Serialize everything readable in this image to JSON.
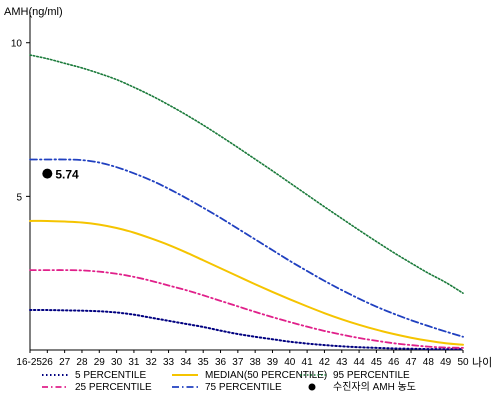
{
  "chart_data": {
    "type": "line",
    "ylabel": "AMH(ng/ml)",
    "xlabel": "나이",
    "ylim": [
      0,
      11
    ],
    "yticks": [
      5,
      10
    ],
    "categories": [
      "16-25",
      "26",
      "27",
      "28",
      "29",
      "30",
      "31",
      "32",
      "33",
      "34",
      "35",
      "36",
      "37",
      "38",
      "39",
      "40",
      "41",
      "42",
      "43",
      "44",
      "45",
      "46",
      "47",
      "48",
      "49",
      "50"
    ],
    "series": [
      {
        "name": "5 PERCENTILE",
        "color": "#000080",
        "dash": "1.5,2.5",
        "width": 2,
        "values": [
          1.3,
          1.3,
          1.29,
          1.28,
          1.26,
          1.22,
          1.15,
          1.05,
          0.95,
          0.85,
          0.75,
          0.63,
          0.52,
          0.43,
          0.35,
          0.27,
          0.21,
          0.16,
          0.12,
          0.09,
          0.07,
          0.05,
          0.04,
          0.03,
          0.03,
          0.03
        ]
      },
      {
        "name": "25 PERCENTILE",
        "color": "#e0208a",
        "dash": "6,3,1.5,3",
        "width": 1.8,
        "values": [
          2.6,
          2.6,
          2.6,
          2.59,
          2.55,
          2.48,
          2.38,
          2.25,
          2.1,
          1.95,
          1.78,
          1.6,
          1.42,
          1.24,
          1.07,
          0.91,
          0.76,
          0.62,
          0.5,
          0.39,
          0.3,
          0.22,
          0.16,
          0.11,
          0.08,
          0.07
        ]
      },
      {
        "name": "MEDIAN(50 PERCENTILE)",
        "color": "#f5c400",
        "dash": "",
        "width": 2,
        "values": [
          4.2,
          4.2,
          4.18,
          4.15,
          4.08,
          3.97,
          3.82,
          3.63,
          3.42,
          3.18,
          2.92,
          2.66,
          2.4,
          2.14,
          1.89,
          1.65,
          1.42,
          1.2,
          1.0,
          0.82,
          0.66,
          0.52,
          0.4,
          0.3,
          0.22,
          0.17
        ]
      },
      {
        "name": "75 PERCENTILE",
        "color": "#2040c0",
        "dash": "7,3,1.5,3",
        "width": 1.8,
        "values": [
          6.2,
          6.2,
          6.2,
          6.18,
          6.1,
          5.95,
          5.75,
          5.52,
          5.25,
          4.95,
          4.63,
          4.3,
          3.95,
          3.6,
          3.25,
          2.9,
          2.57,
          2.25,
          1.95,
          1.67,
          1.41,
          1.18,
          0.97,
          0.78,
          0.6,
          0.43
        ]
      },
      {
        "name": "95 PERCENTILE",
        "color": "#1a7a3a",
        "dash": "1.5,2",
        "width": 1.6,
        "values": [
          9.6,
          9.48,
          9.33,
          9.18,
          9.0,
          8.8,
          8.55,
          8.28,
          7.98,
          7.66,
          7.32,
          6.96,
          6.59,
          6.21,
          5.83,
          5.44,
          5.05,
          4.66,
          4.28,
          3.9,
          3.53,
          3.17,
          2.83,
          2.5,
          2.2,
          1.85
        ]
      }
    ],
    "marker": {
      "name": "수진자의 AMH 농도",
      "category": "26",
      "value": 5.74,
      "label": "5.74",
      "color": "#000000"
    },
    "legend_order": [
      "5 PERCENTILE",
      "25 PERCENTILE",
      "MEDIAN(50 PERCENTILE)",
      "75 PERCENTILE",
      "95 PERCENTILE",
      "수진자의 AMH 농도"
    ],
    "legend_position": "bottom",
    "grid": false
  }
}
